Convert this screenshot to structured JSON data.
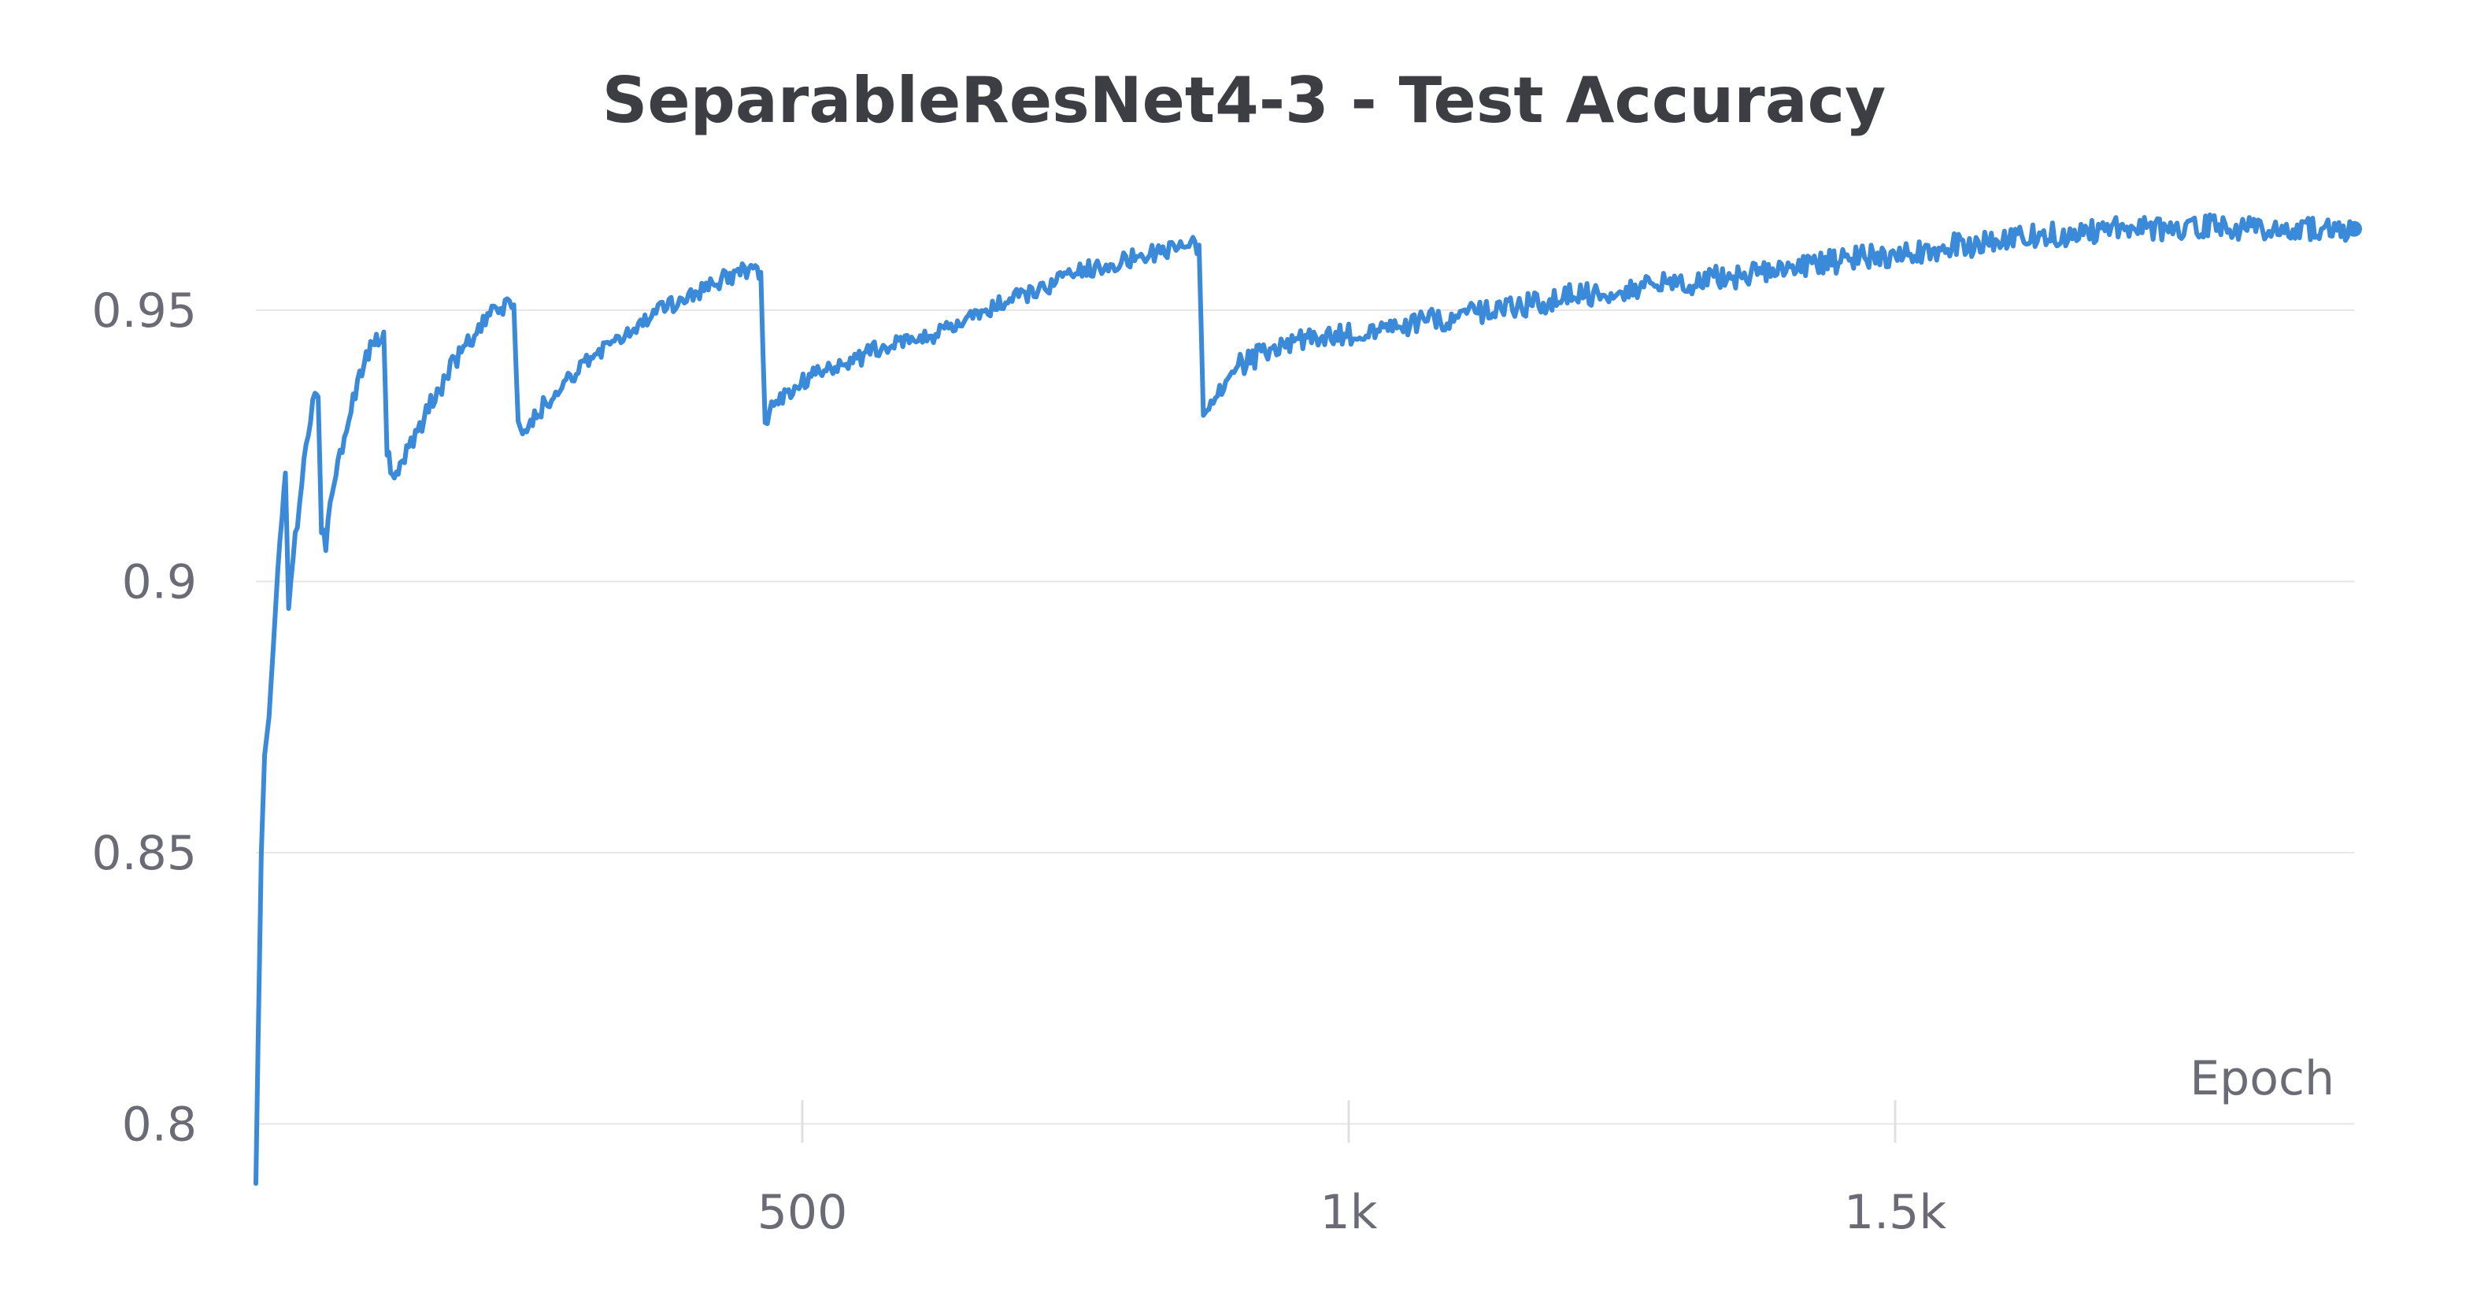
{
  "chart_data": {
    "type": "line",
    "title": "SeparableResNet4-3 - Test Accuracy",
    "xlabel": "Epoch",
    "ylabel": "",
    "xlim": [
      0,
      1920
    ],
    "ylim": [
      0.788,
      0.968
    ],
    "x_ticks": [
      {
        "value": 500,
        "label": "500"
      },
      {
        "value": 1000,
        "label": "1k"
      },
      {
        "value": 1500,
        "label": "1.5k"
      }
    ],
    "y_ticks": [
      {
        "value": 0.8,
        "label": "0.8"
      },
      {
        "value": 0.85,
        "label": "0.85"
      },
      {
        "value": 0.9,
        "label": "0.9"
      },
      {
        "value": 0.95,
        "label": "0.95"
      }
    ],
    "grid": "horizontal",
    "legend": "none",
    "series": [
      {
        "color": "#3a8ad9",
        "points": [
          [
            0,
            0.789
          ],
          [
            2,
            0.815
          ],
          [
            5,
            0.85
          ],
          [
            8,
            0.868
          ],
          [
            12,
            0.875
          ],
          [
            16,
            0.888
          ],
          [
            20,
            0.902
          ],
          [
            24,
            0.913
          ],
          [
            27,
            0.92
          ],
          [
            30,
            0.895
          ],
          [
            34,
            0.905
          ],
          [
            38,
            0.91
          ],
          [
            42,
            0.918
          ],
          [
            46,
            0.926
          ],
          [
            50,
            0.93
          ],
          [
            54,
            0.935
          ],
          [
            57,
            0.934
          ],
          [
            60,
            0.91
          ],
          [
            64,
            0.907
          ],
          [
            68,
            0.915
          ],
          [
            75,
            0.922
          ],
          [
            85,
            0.93
          ],
          [
            95,
            0.938
          ],
          [
            105,
            0.943
          ],
          [
            112,
            0.945
          ],
          [
            117,
            0.946
          ],
          [
            120,
            0.924
          ],
          [
            125,
            0.919
          ],
          [
            132,
            0.921
          ],
          [
            140,
            0.925
          ],
          [
            150,
            0.928
          ],
          [
            160,
            0.933
          ],
          [
            170,
            0.936
          ],
          [
            180,
            0.94
          ],
          [
            190,
            0.943
          ],
          [
            200,
            0.945
          ],
          [
            210,
            0.948
          ],
          [
            220,
            0.95
          ],
          [
            230,
            0.951
          ],
          [
            236,
            0.951
          ],
          [
            240,
            0.929
          ],
          [
            246,
            0.927
          ],
          [
            255,
            0.93
          ],
          [
            265,
            0.933
          ],
          [
            280,
            0.936
          ],
          [
            295,
            0.939
          ],
          [
            310,
            0.942
          ],
          [
            330,
            0.944
          ],
          [
            350,
            0.947
          ],
          [
            370,
            0.95
          ],
          [
            390,
            0.952
          ],
          [
            410,
            0.954
          ],
          [
            430,
            0.956
          ],
          [
            445,
            0.957
          ],
          [
            457,
            0.958
          ],
          [
            462,
            0.957
          ],
          [
            466,
            0.928
          ],
          [
            472,
            0.932
          ],
          [
            480,
            0.934
          ],
          [
            495,
            0.936
          ],
          [
            510,
            0.938
          ],
          [
            530,
            0.94
          ],
          [
            550,
            0.941
          ],
          [
            570,
            0.943
          ],
          [
            590,
            0.944
          ],
          [
            610,
            0.945
          ],
          [
            630,
            0.946
          ],
          [
            650,
            0.948
          ],
          [
            670,
            0.95
          ],
          [
            690,
            0.952
          ],
          [
            710,
            0.953
          ],
          [
            730,
            0.955
          ],
          [
            750,
            0.957
          ],
          [
            770,
            0.958
          ],
          [
            790,
            0.959
          ],
          [
            810,
            0.96
          ],
          [
            830,
            0.961
          ],
          [
            850,
            0.962
          ],
          [
            863,
            0.962
          ],
          [
            867,
            0.932
          ],
          [
            872,
            0.931
          ],
          [
            880,
            0.935
          ],
          [
            895,
            0.939
          ],
          [
            910,
            0.941
          ],
          [
            930,
            0.943
          ],
          [
            950,
            0.944
          ],
          [
            970,
            0.945
          ],
          [
            990,
            0.945
          ],
          [
            1010,
            0.946
          ],
          [
            1030,
            0.946
          ],
          [
            1050,
            0.947
          ],
          [
            1070,
            0.948
          ],
          [
            1090,
            0.948
          ],
          [
            1110,
            0.949
          ],
          [
            1130,
            0.95
          ],
          [
            1150,
            0.951
          ],
          [
            1170,
            0.951
          ],
          [
            1190,
            0.952
          ],
          [
            1210,
            0.953
          ],
          [
            1230,
            0.953
          ],
          [
            1250,
            0.954
          ],
          [
            1270,
            0.954
          ],
          [
            1290,
            0.955
          ],
          [
            1310,
            0.955
          ],
          [
            1330,
            0.956
          ],
          [
            1350,
            0.956
          ],
          [
            1370,
            0.957
          ],
          [
            1390,
            0.957
          ],
          [
            1410,
            0.958
          ],
          [
            1430,
            0.959
          ],
          [
            1450,
            0.959
          ],
          [
            1470,
            0.96
          ],
          [
            1490,
            0.96
          ],
          [
            1510,
            0.961
          ],
          [
            1530,
            0.961
          ],
          [
            1550,
            0.962
          ],
          [
            1570,
            0.962
          ],
          [
            1590,
            0.963
          ],
          [
            1610,
            0.963
          ],
          [
            1630,
            0.964
          ],
          [
            1650,
            0.964
          ],
          [
            1670,
            0.964
          ],
          [
            1690,
            0.965
          ],
          [
            1710,
            0.965
          ],
          [
            1730,
            0.965
          ],
          [
            1750,
            0.965
          ],
          [
            1770,
            0.965
          ],
          [
            1790,
            0.966
          ],
          [
            1810,
            0.965
          ],
          [
            1830,
            0.965
          ],
          [
            1850,
            0.965
          ],
          [
            1870,
            0.965
          ],
          [
            1890,
            0.965
          ],
          [
            1910,
            0.965
          ],
          [
            1920,
            0.965
          ]
        ]
      }
    ]
  }
}
